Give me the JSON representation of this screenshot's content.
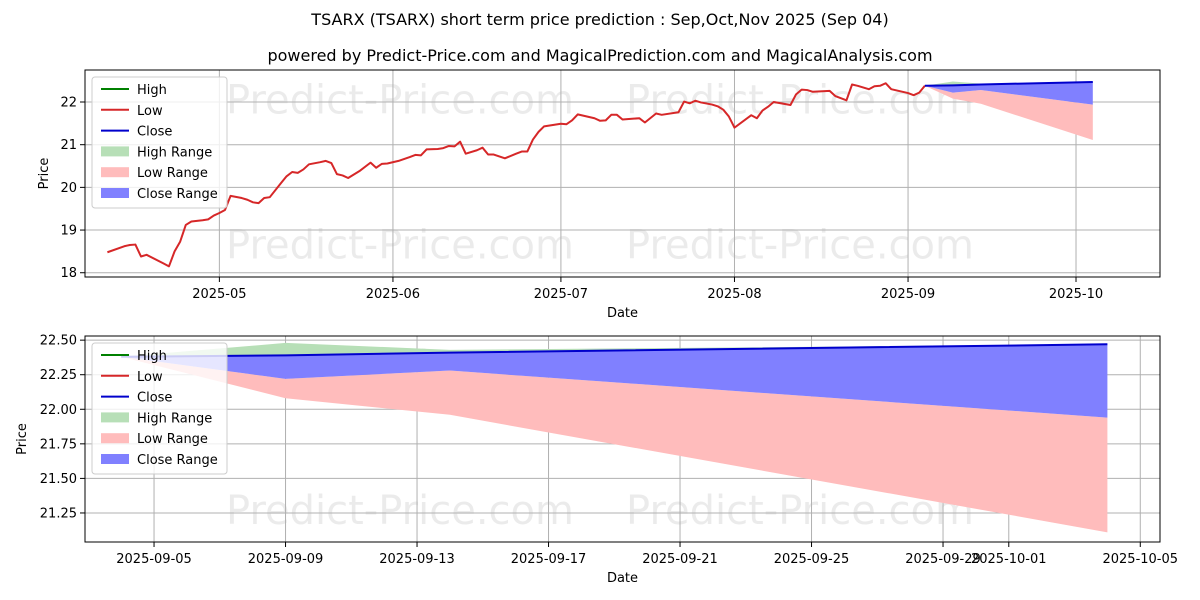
{
  "page": {
    "title": "TSARX (TSARX) short term price prediction : Sep,Oct,Nov 2025 (Sep 04)",
    "subtitle": "powered by Predict-Price.com and MagicalPrediction.com and MagicalAnalysis.com",
    "watermark": "Predict-Price.com"
  },
  "colors": {
    "high": "#008000",
    "low": "#d62728",
    "close": "#0000cc",
    "high_range": "#b7dfb7",
    "low_range": "#ffbcbc",
    "close_range": "#8080ff",
    "grid": "#b0b0b0"
  },
  "legend": {
    "placement": "top-left",
    "items": [
      {
        "key": "high",
        "label": "High",
        "kind": "line"
      },
      {
        "key": "low",
        "label": "Low",
        "kind": "line"
      },
      {
        "key": "close",
        "label": "Close",
        "kind": "line"
      },
      {
        "key": "high_range",
        "label": "High Range",
        "kind": "patch"
      },
      {
        "key": "low_range",
        "label": "Low Range",
        "kind": "patch"
      },
      {
        "key": "close_range",
        "label": "Close Range",
        "kind": "patch"
      }
    ]
  },
  "chart_data": [
    {
      "type": "line",
      "xlabel": "Date",
      "ylabel": "Price",
      "xlim": [
        "2025-04-07",
        "2025-10-16"
      ],
      "ylim": [
        17.9,
        22.75
      ],
      "grid": true,
      "x_ticks": [
        {
          "value": "2025-05-01",
          "label": "2025-05"
        },
        {
          "value": "2025-06-01",
          "label": "2025-06"
        },
        {
          "value": "2025-07-01",
          "label": "2025-07"
        },
        {
          "value": "2025-08-01",
          "label": "2025-08"
        },
        {
          "value": "2025-09-01",
          "label": "2025-09"
        },
        {
          "value": "2025-10-01",
          "label": "2025-10"
        }
      ],
      "y_ticks": [
        18,
        19,
        20,
        21,
        22
      ],
      "history": {
        "name": "Low",
        "points": [
          [
            "2025-04-11",
            18.48
          ],
          [
            "2025-04-14",
            18.62
          ],
          [
            "2025-04-15",
            18.65
          ],
          [
            "2025-04-16",
            18.66
          ],
          [
            "2025-04-17",
            18.38
          ],
          [
            "2025-04-18",
            18.42
          ],
          [
            "2025-04-21",
            18.22
          ],
          [
            "2025-04-22",
            18.15
          ],
          [
            "2025-04-23",
            18.5
          ],
          [
            "2025-04-24",
            18.73
          ],
          [
            "2025-04-25",
            19.12
          ],
          [
            "2025-04-26",
            19.2
          ],
          [
            "2025-04-28",
            19.23
          ],
          [
            "2025-04-29",
            19.25
          ],
          [
            "2025-04-30",
            19.34
          ],
          [
            "2025-05-01",
            19.4
          ],
          [
            "2025-05-02",
            19.47
          ],
          [
            "2025-05-03",
            19.8
          ],
          [
            "2025-05-05",
            19.75
          ],
          [
            "2025-05-06",
            19.71
          ],
          [
            "2025-05-07",
            19.65
          ],
          [
            "2025-05-08",
            19.63
          ],
          [
            "2025-05-09",
            19.75
          ],
          [
            "2025-05-10",
            19.77
          ],
          [
            "2025-05-12",
            20.1
          ],
          [
            "2025-05-13",
            20.26
          ],
          [
            "2025-05-14",
            20.36
          ],
          [
            "2025-05-15",
            20.34
          ],
          [
            "2025-05-16",
            20.42
          ],
          [
            "2025-05-17",
            20.54
          ],
          [
            "2025-05-19",
            20.59
          ],
          [
            "2025-05-20",
            20.62
          ],
          [
            "2025-05-21",
            20.57
          ],
          [
            "2025-05-22",
            20.31
          ],
          [
            "2025-05-23",
            20.28
          ],
          [
            "2025-05-24",
            20.22
          ],
          [
            "2025-05-26",
            20.38
          ],
          [
            "2025-05-28",
            20.58
          ],
          [
            "2025-05-29",
            20.46
          ],
          [
            "2025-05-30",
            20.55
          ],
          [
            "2025-05-31",
            20.56
          ],
          [
            "2025-06-02",
            20.62
          ],
          [
            "2025-06-04",
            20.71
          ],
          [
            "2025-06-05",
            20.76
          ],
          [
            "2025-06-06",
            20.75
          ],
          [
            "2025-06-07",
            20.89
          ],
          [
            "2025-06-09",
            20.9
          ],
          [
            "2025-06-10",
            20.92
          ],
          [
            "2025-06-11",
            20.97
          ],
          [
            "2025-06-12",
            20.96
          ],
          [
            "2025-06-13",
            21.07
          ],
          [
            "2025-06-14",
            20.79
          ],
          [
            "2025-06-16",
            20.87
          ],
          [
            "2025-06-17",
            20.93
          ],
          [
            "2025-06-18",
            20.77
          ],
          [
            "2025-06-19",
            20.77
          ],
          [
            "2025-06-21",
            20.68
          ],
          [
            "2025-06-23",
            20.79
          ],
          [
            "2025-06-24",
            20.84
          ],
          [
            "2025-06-25",
            20.84
          ],
          [
            "2025-06-26",
            21.12
          ],
          [
            "2025-06-27",
            21.3
          ],
          [
            "2025-06-28",
            21.43
          ],
          [
            "2025-06-30",
            21.47
          ],
          [
            "2025-07-01",
            21.49
          ],
          [
            "2025-07-02",
            21.48
          ],
          [
            "2025-07-03",
            21.57
          ],
          [
            "2025-07-04",
            21.71
          ],
          [
            "2025-07-07",
            21.62
          ],
          [
            "2025-07-08",
            21.56
          ],
          [
            "2025-07-09",
            21.57
          ],
          [
            "2025-07-10",
            21.7
          ],
          [
            "2025-07-11",
            21.7
          ],
          [
            "2025-07-12",
            21.59
          ],
          [
            "2025-07-14",
            21.61
          ],
          [
            "2025-07-15",
            21.62
          ],
          [
            "2025-07-16",
            21.52
          ],
          [
            "2025-07-18",
            21.73
          ],
          [
            "2025-07-19",
            21.7
          ],
          [
            "2025-07-22",
            21.76
          ],
          [
            "2025-07-23",
            22.01
          ],
          [
            "2025-07-24",
            21.97
          ],
          [
            "2025-07-25",
            22.03
          ],
          [
            "2025-07-26",
            21.99
          ],
          [
            "2025-07-28",
            21.94
          ],
          [
            "2025-07-29",
            21.9
          ],
          [
            "2025-07-30",
            21.82
          ],
          [
            "2025-07-31",
            21.66
          ],
          [
            "2025-08-01",
            21.4
          ],
          [
            "2025-08-04",
            21.69
          ],
          [
            "2025-08-05",
            21.62
          ],
          [
            "2025-08-06",
            21.8
          ],
          [
            "2025-08-07",
            21.89
          ],
          [
            "2025-08-08",
            22.0
          ],
          [
            "2025-08-11",
            21.93
          ],
          [
            "2025-08-12",
            22.18
          ],
          [
            "2025-08-13",
            22.29
          ],
          [
            "2025-08-14",
            22.28
          ],
          [
            "2025-08-15",
            22.24
          ],
          [
            "2025-08-18",
            22.26
          ],
          [
            "2025-08-19",
            22.14
          ],
          [
            "2025-08-21",
            22.04
          ],
          [
            "2025-08-22",
            22.41
          ],
          [
            "2025-08-23",
            22.38
          ],
          [
            "2025-08-25",
            22.3
          ],
          [
            "2025-08-26",
            22.37
          ],
          [
            "2025-08-27",
            22.38
          ],
          [
            "2025-08-28",
            22.44
          ],
          [
            "2025-08-29",
            22.3
          ],
          [
            "2025-09-01",
            22.21
          ],
          [
            "2025-09-02",
            22.16
          ],
          [
            "2025-09-03",
            22.22
          ],
          [
            "2025-09-04",
            22.38
          ]
        ]
      },
      "forecast_dates": [
        "2025-09-04",
        "2025-09-09",
        "2025-09-14",
        "2025-10-04"
      ],
      "series": [
        {
          "name": "High",
          "values": [
            22.38,
            22.48,
            22.43,
            22.47
          ]
        },
        {
          "name": "Low",
          "values": [
            22.38,
            22.08,
            22.27,
            21.11
          ]
        },
        {
          "name": "Close",
          "values": [
            22.38,
            22.39,
            22.41,
            22.47
          ]
        }
      ],
      "ranges": [
        {
          "name": "High Range",
          "upper": [
            22.38,
            22.48,
            22.43,
            22.47
          ],
          "lower": [
            22.38,
            22.39,
            22.41,
            22.47
          ]
        },
        {
          "name": "Low Range",
          "upper": [
            22.38,
            22.22,
            22.28,
            21.94
          ],
          "lower": [
            22.38,
            22.08,
            21.96,
            21.11
          ]
        },
        {
          "name": "Close Range",
          "upper": [
            22.38,
            22.39,
            22.41,
            22.47
          ],
          "lower": [
            22.38,
            22.22,
            22.28,
            21.94
          ]
        }
      ]
    },
    {
      "type": "line",
      "xlabel": "Date",
      "ylabel": "Price",
      "xlim": [
        "2025-09-02.9",
        "2025-10-05.6"
      ],
      "ylim": [
        21.04,
        22.53
      ],
      "grid": true,
      "x_ticks": [
        {
          "value": "2025-09-05",
          "label": "2025-09-05"
        },
        {
          "value": "2025-09-09",
          "label": "2025-09-09"
        },
        {
          "value": "2025-09-13",
          "label": "2025-09-13"
        },
        {
          "value": "2025-09-17",
          "label": "2025-09-17"
        },
        {
          "value": "2025-09-21",
          "label": "2025-09-21"
        },
        {
          "value": "2025-09-25",
          "label": "2025-09-25"
        },
        {
          "value": "2025-09-29",
          "label": "2025-09-29"
        },
        {
          "value": "2025-10-01",
          "label": "2025-10-01"
        },
        {
          "value": "2025-10-05",
          "label": "2025-10-05"
        }
      ],
      "y_ticks": [
        "21.25",
        "21.50",
        "21.75",
        "22.00",
        "22.25",
        "22.50"
      ],
      "forecast_dates": [
        "2025-09-04",
        "2025-09-09",
        "2025-09-14",
        "2025-10-04"
      ],
      "series": [
        {
          "name": "High",
          "values": [
            22.38,
            22.48,
            22.43,
            22.47
          ]
        },
        {
          "name": "Low",
          "values": [
            22.38,
            22.08,
            22.27,
            21.11
          ]
        },
        {
          "name": "Close",
          "values": [
            22.38,
            22.39,
            22.41,
            22.47
          ]
        }
      ],
      "ranges": [
        {
          "name": "High Range",
          "upper": [
            22.38,
            22.48,
            22.43,
            22.47
          ],
          "lower": [
            22.38,
            22.39,
            22.41,
            22.47
          ]
        },
        {
          "name": "Low Range",
          "upper": [
            22.38,
            22.22,
            22.28,
            21.94
          ],
          "lower": [
            22.38,
            22.08,
            21.96,
            21.11
          ]
        },
        {
          "name": "Close Range",
          "upper": [
            22.38,
            22.39,
            22.41,
            22.47
          ],
          "lower": [
            22.38,
            22.22,
            22.28,
            21.94
          ]
        }
      ]
    }
  ]
}
